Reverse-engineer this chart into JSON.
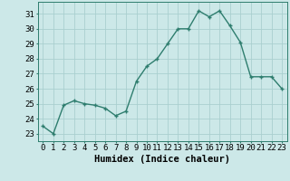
{
  "xlabel": "Humidex (Indice chaleur)",
  "x": [
    0,
    1,
    2,
    3,
    4,
    5,
    6,
    7,
    8,
    9,
    10,
    11,
    12,
    13,
    14,
    15,
    16,
    17,
    18,
    19,
    20,
    21,
    22,
    23
  ],
  "y": [
    23.5,
    23.0,
    24.9,
    25.2,
    25.0,
    24.9,
    24.7,
    24.2,
    24.5,
    26.5,
    27.5,
    28.0,
    29.0,
    30.0,
    30.0,
    31.2,
    30.8,
    31.2,
    30.2,
    29.1,
    26.8,
    26.8,
    26.8,
    26.0
  ],
  "line_color": "#2e7d6e",
  "bg_color": "#cce8e8",
  "grid_color": "#aacfcf",
  "ylim": [
    22.5,
    31.8
  ],
  "yticks": [
    23,
    24,
    25,
    26,
    27,
    28,
    29,
    30,
    31
  ],
  "xticks": [
    0,
    1,
    2,
    3,
    4,
    5,
    6,
    7,
    8,
    9,
    10,
    11,
    12,
    13,
    14,
    15,
    16,
    17,
    18,
    19,
    20,
    21,
    22,
    23
  ],
  "xlabel_fontsize": 7.5,
  "tick_fontsize": 6.5
}
